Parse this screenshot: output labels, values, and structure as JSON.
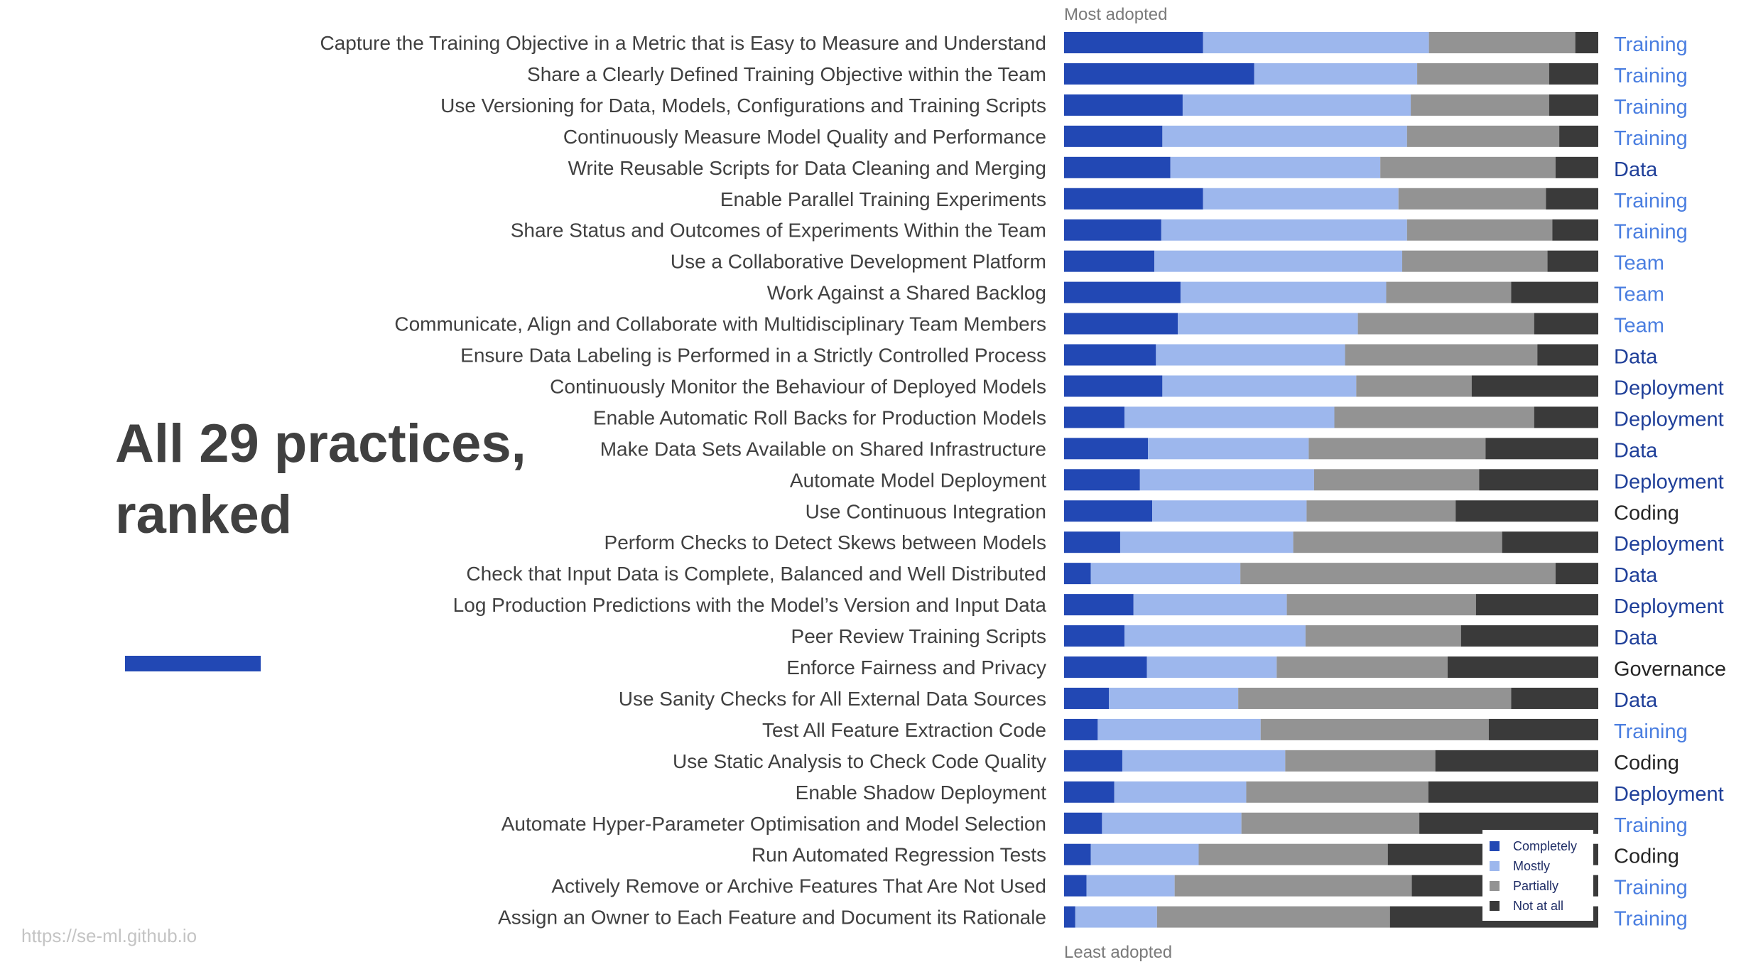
{
  "slide": {
    "title": "All 29 practices, ranked",
    "url": "https://se-ml.github.io"
  },
  "colors": {
    "completely": "#2248b4",
    "mostly": "#9db7ed",
    "partially": "#939393",
    "not_at_all": "#3a3a3a",
    "label_text": "#404040",
    "accent": "#2248b4",
    "category": {
      "Training": "#4a7ee0",
      "Data": "#1f3f99",
      "Team": "#4a7ee0",
      "Deployment": "#1f3f99",
      "Coding": "#262626",
      "Governance": "#262626"
    }
  },
  "chart_data": {
    "type": "bar",
    "orientation": "horizontal",
    "stacked": true,
    "normalized": true,
    "top_annotation": "Most adopted",
    "bottom_annotation": "Least adopted",
    "grid": false,
    "legend_position": "bottom-right",
    "categories": [
      "Capture the Training Objective in a Metric that is Easy to Measure and Understand",
      "Share a Clearly Defined Training Objective within the Team",
      "Use Versioning for Data, Models, Configurations and Training Scripts",
      "Continuously Measure Model Quality and Performance",
      "Write Reusable Scripts for Data Cleaning and Merging",
      "Enable Parallel Training Experiments",
      "Share Status and Outcomes of Experiments Within the Team",
      "Use a Collaborative Development Platform",
      "Work Against a Shared Backlog",
      "Communicate, Align and Collaborate with Multidisciplinary Team Members",
      "Ensure Data Labeling is Performed in a Strictly Controlled Process",
      "Continuously Monitor the Behaviour of Deployed Models",
      "Enable Automatic Roll Backs for Production Models",
      "Make Data Sets Available on Shared Infrastructure",
      "Automate Model Deployment",
      "Use Continuous Integration",
      "Perform Checks to Detect Skews between Models",
      "Check that Input Data is Complete, Balanced and Well Distributed",
      "Log Production Predictions with the Model’s Version and Input Data",
      "Peer Review Training Scripts",
      "Enforce Fairness and Privacy",
      "Use Sanity Checks for All External Data Sources",
      "Test All Feature Extraction Code",
      "Use Static Analysis to Check Code Quality",
      "Enable Shadow Deployment",
      "Automate Hyper-Parameter Optimisation and Model Selection",
      "Run Automated Regression Tests",
      "Actively Remove or Archive Features That Are Not Used",
      "Assign an Owner to Each Feature and Document its Rationale"
    ],
    "practice_category": [
      "Training",
      "Training",
      "Training",
      "Training",
      "Data",
      "Training",
      "Training",
      "Team",
      "Team",
      "Team",
      "Data",
      "Deployment",
      "Deployment",
      "Data",
      "Deployment",
      "Coding",
      "Deployment",
      "Data",
      "Deployment",
      "Data",
      "Governance",
      "Data",
      "Training",
      "Coding",
      "Deployment",
      "Training",
      "Coding",
      "Training",
      "Training"
    ],
    "series": [
      {
        "name": "Completely",
        "values": [
          26.0,
          35.6,
          22.2,
          18.4,
          19.9,
          26.0,
          18.2,
          16.9,
          21.8,
          21.3,
          17.2,
          18.4,
          11.3,
          15.7,
          14.2,
          16.5,
          10.5,
          5.0,
          13.0,
          11.3,
          15.5,
          8.4,
          6.3,
          10.9,
          9.4,
          7.1,
          5.0,
          4.2,
          2.1
        ]
      },
      {
        "name": "Mostly",
        "values": [
          42.3,
          30.5,
          42.7,
          45.8,
          39.3,
          36.6,
          46.0,
          46.4,
          38.5,
          33.7,
          35.4,
          36.3,
          39.3,
          30.1,
          32.6,
          28.9,
          32.4,
          28.0,
          28.7,
          33.9,
          24.3,
          24.2,
          30.5,
          30.5,
          24.7,
          26.1,
          20.2,
          16.5,
          15.3
        ]
      },
      {
        "name": "Partially",
        "values": [
          27.4,
          24.7,
          25.9,
          28.5,
          32.8,
          27.6,
          27.2,
          27.2,
          23.4,
          33.0,
          36.0,
          21.6,
          37.4,
          33.1,
          30.9,
          27.9,
          39.1,
          59.0,
          35.4,
          29.1,
          32.0,
          51.1,
          42.7,
          28.1,
          34.1,
          33.3,
          35.4,
          44.4,
          43.6
        ]
      },
      {
        "name": "Not at all",
        "values": [
          4.3,
          9.2,
          9.2,
          7.3,
          8.0,
          9.8,
          8.6,
          9.5,
          16.3,
          12.0,
          11.4,
          23.7,
          12.0,
          21.1,
          22.3,
          26.7,
          18.0,
          8.0,
          22.9,
          25.7,
          28.2,
          16.3,
          20.5,
          30.5,
          31.8,
          33.5,
          39.4,
          34.9,
          39.0
        ]
      }
    ]
  }
}
